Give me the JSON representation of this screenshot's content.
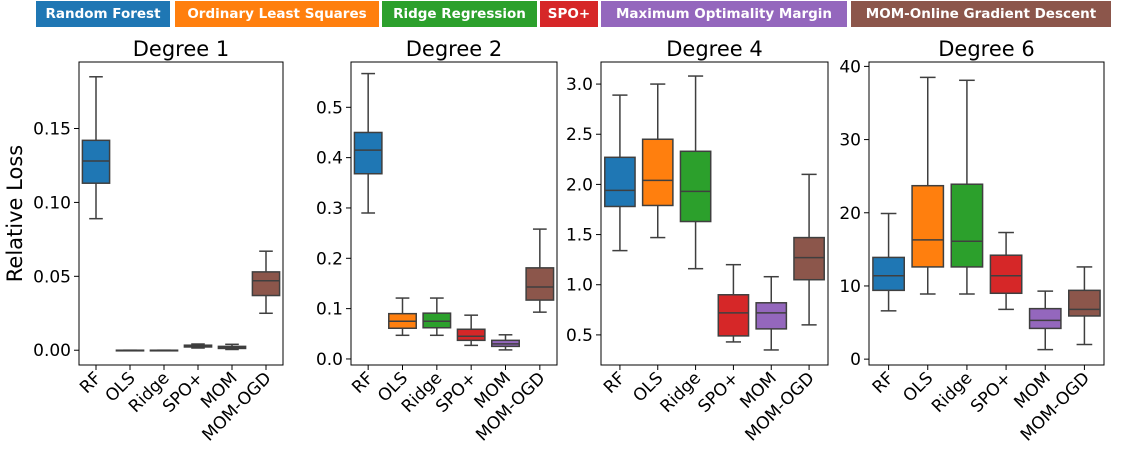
{
  "legend": {
    "placement": "top",
    "items": [
      {
        "label": "Random Forest",
        "color": "#1f77b4"
      },
      {
        "label": "Ordinary Least Squares",
        "color": "#ff7f0e"
      },
      {
        "label": "Ridge Regression",
        "color": "#2ca02c"
      },
      {
        "label": "SPO+",
        "color": "#d62728"
      },
      {
        "label": "Maximum Optimality Margin",
        "color": "#9467bd"
      },
      {
        "label": "MOM-Online Gradient Descent",
        "color": "#8c564b"
      }
    ]
  },
  "chart_data": [
    {
      "type": "box",
      "title": "Degree 1",
      "ylabel": "Relative Loss",
      "categories": [
        "RF",
        "OLS",
        "Ridge",
        "SPO+",
        "MOM",
        "MOM-OGD"
      ],
      "ylim": [
        -0.01,
        0.195
      ],
      "yticks": [
        0.0,
        0.05,
        0.1,
        0.15
      ],
      "ytick_labels": [
        "0.00",
        "0.05",
        "0.10",
        "0.15"
      ],
      "boxes": [
        {
          "whislo": 0.089,
          "q1": 0.113,
          "med": 0.128,
          "q3": 0.142,
          "whishi": 0.185
        },
        {
          "whislo": 0.0,
          "q1": 0.0,
          "med": 0.0,
          "q3": 0.0,
          "whishi": 0.0
        },
        {
          "whislo": 0.0,
          "q1": 0.0,
          "med": 0.0,
          "q3": 0.0,
          "whishi": 0.0
        },
        {
          "whislo": 0.0015,
          "q1": 0.0022,
          "med": 0.0028,
          "q3": 0.0034,
          "whishi": 0.0042
        },
        {
          "whislo": 0.0005,
          "q1": 0.0012,
          "med": 0.0018,
          "q3": 0.0026,
          "whishi": 0.004
        },
        {
          "whislo": 0.025,
          "q1": 0.037,
          "med": 0.047,
          "q3": 0.053,
          "whishi": 0.067
        }
      ]
    },
    {
      "type": "box",
      "title": "Degree 2",
      "ylabel": "",
      "categories": [
        "RF",
        "OLS",
        "Ridge",
        "SPO+",
        "MOM",
        "MOM-OGD"
      ],
      "ylim": [
        -0.012,
        0.59
      ],
      "yticks": [
        0.0,
        0.1,
        0.2,
        0.3,
        0.4,
        0.5
      ],
      "ytick_labels": [
        "0.0",
        "0.1",
        "0.2",
        "0.3",
        "0.4",
        "0.5"
      ],
      "boxes": [
        {
          "whislo": 0.29,
          "q1": 0.368,
          "med": 0.415,
          "q3": 0.45,
          "whishi": 0.567
        },
        {
          "whislo": 0.047,
          "q1": 0.061,
          "med": 0.075,
          "q3": 0.09,
          "whishi": 0.121
        },
        {
          "whislo": 0.047,
          "q1": 0.062,
          "med": 0.075,
          "q3": 0.091,
          "whishi": 0.121
        },
        {
          "whislo": 0.027,
          "q1": 0.037,
          "med": 0.045,
          "q3": 0.059,
          "whishi": 0.087
        },
        {
          "whislo": 0.018,
          "q1": 0.025,
          "med": 0.03,
          "q3": 0.037,
          "whishi": 0.048
        },
        {
          "whislo": 0.093,
          "q1": 0.117,
          "med": 0.143,
          "q3": 0.181,
          "whishi": 0.258
        }
      ]
    },
    {
      "type": "box",
      "title": "Degree 4",
      "ylabel": "",
      "categories": [
        "RF",
        "OLS",
        "Ridge",
        "SPO+",
        "MOM",
        "MOM-OGD"
      ],
      "ylim": [
        0.2,
        3.22
      ],
      "yticks": [
        0.5,
        1.0,
        1.5,
        2.0,
        2.5,
        3.0
      ],
      "ytick_labels": [
        "0.5",
        "1.0",
        "1.5",
        "2.0",
        "2.5",
        "3.0"
      ],
      "boxes": [
        {
          "whislo": 1.34,
          "q1": 1.78,
          "med": 1.94,
          "q3": 2.27,
          "whishi": 2.89
        },
        {
          "whislo": 1.47,
          "q1": 1.79,
          "med": 2.04,
          "q3": 2.45,
          "whishi": 3.0
        },
        {
          "whislo": 1.16,
          "q1": 1.63,
          "med": 1.93,
          "q3": 2.33,
          "whishi": 3.08
        },
        {
          "whislo": 0.43,
          "q1": 0.49,
          "med": 0.72,
          "q3": 0.9,
          "whishi": 1.2
        },
        {
          "whislo": 0.35,
          "q1": 0.56,
          "med": 0.72,
          "q3": 0.82,
          "whishi": 1.08
        },
        {
          "whislo": 0.6,
          "q1": 1.05,
          "med": 1.27,
          "q3": 1.47,
          "whishi": 2.1
        }
      ]
    },
    {
      "type": "box",
      "title": "Degree 6",
      "ylabel": "",
      "categories": [
        "RF",
        "OLS",
        "Ridge",
        "SPO+",
        "MOM",
        "MOM-OGD"
      ],
      "ylim": [
        -0.8,
        40.6
      ],
      "yticks": [
        0,
        10,
        20,
        30,
        40
      ],
      "ytick_labels": [
        "0",
        "10",
        "20",
        "30",
        "40"
      ],
      "boxes": [
        {
          "whislo": 6.6,
          "q1": 9.4,
          "med": 11.4,
          "q3": 13.9,
          "whishi": 19.9
        },
        {
          "whislo": 8.9,
          "q1": 12.6,
          "med": 16.3,
          "q3": 23.7,
          "whishi": 38.5
        },
        {
          "whislo": 8.9,
          "q1": 12.6,
          "med": 16.1,
          "q3": 23.9,
          "whishi": 38.1
        },
        {
          "whislo": 6.8,
          "q1": 9.0,
          "med": 11.4,
          "q3": 14.2,
          "whishi": 17.3
        },
        {
          "whislo": 1.3,
          "q1": 4.2,
          "med": 5.3,
          "q3": 6.9,
          "whishi": 9.3
        },
        {
          "whislo": 2.0,
          "q1": 5.9,
          "med": 6.8,
          "q3": 9.4,
          "whishi": 12.6
        }
      ]
    }
  ]
}
